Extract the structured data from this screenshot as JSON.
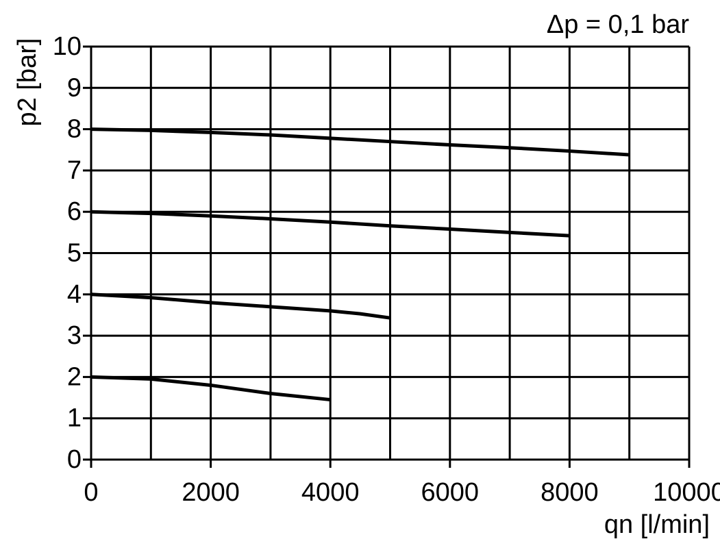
{
  "chart_data": {
    "type": "line",
    "annotation": "Δp = 0,1 bar",
    "ylabel": "p2 [bar]",
    "xlabel": "qn [l/min]",
    "xlim": [
      0,
      10000
    ],
    "ylim": [
      0,
      10
    ],
    "xticks": [
      0,
      2000,
      4000,
      6000,
      8000,
      10000
    ],
    "yticks": [
      0,
      1,
      2,
      3,
      4,
      5,
      6,
      7,
      8,
      9,
      10
    ],
    "xgrid": [
      0,
      1000,
      2000,
      3000,
      4000,
      5000,
      6000,
      7000,
      8000,
      9000,
      10000
    ],
    "grid": true,
    "series": [
      {
        "color": "#000000",
        "x": [
          0,
          1000,
          2000,
          3000,
          4000,
          5000,
          6000,
          7000,
          8000,
          9000
        ],
        "values": [
          8.0,
          7.97,
          7.92,
          7.86,
          7.78,
          7.7,
          7.62,
          7.55,
          7.47,
          7.38
        ]
      },
      {
        "color": "#000000",
        "x": [
          0,
          1000,
          2000,
          3000,
          4000,
          5000,
          6000,
          7000,
          8000
        ],
        "values": [
          6.0,
          5.96,
          5.9,
          5.83,
          5.75,
          5.66,
          5.58,
          5.5,
          5.42
        ]
      },
      {
        "color": "#000000",
        "x": [
          0,
          1000,
          2000,
          3000,
          4000,
          4500,
          5000
        ],
        "values": [
          4.0,
          3.92,
          3.8,
          3.7,
          3.6,
          3.53,
          3.43
        ]
      },
      {
        "color": "#000000",
        "x": [
          0,
          1000,
          2000,
          3000,
          4000
        ],
        "values": [
          2.0,
          1.95,
          1.8,
          1.6,
          1.45
        ]
      }
    ]
  }
}
